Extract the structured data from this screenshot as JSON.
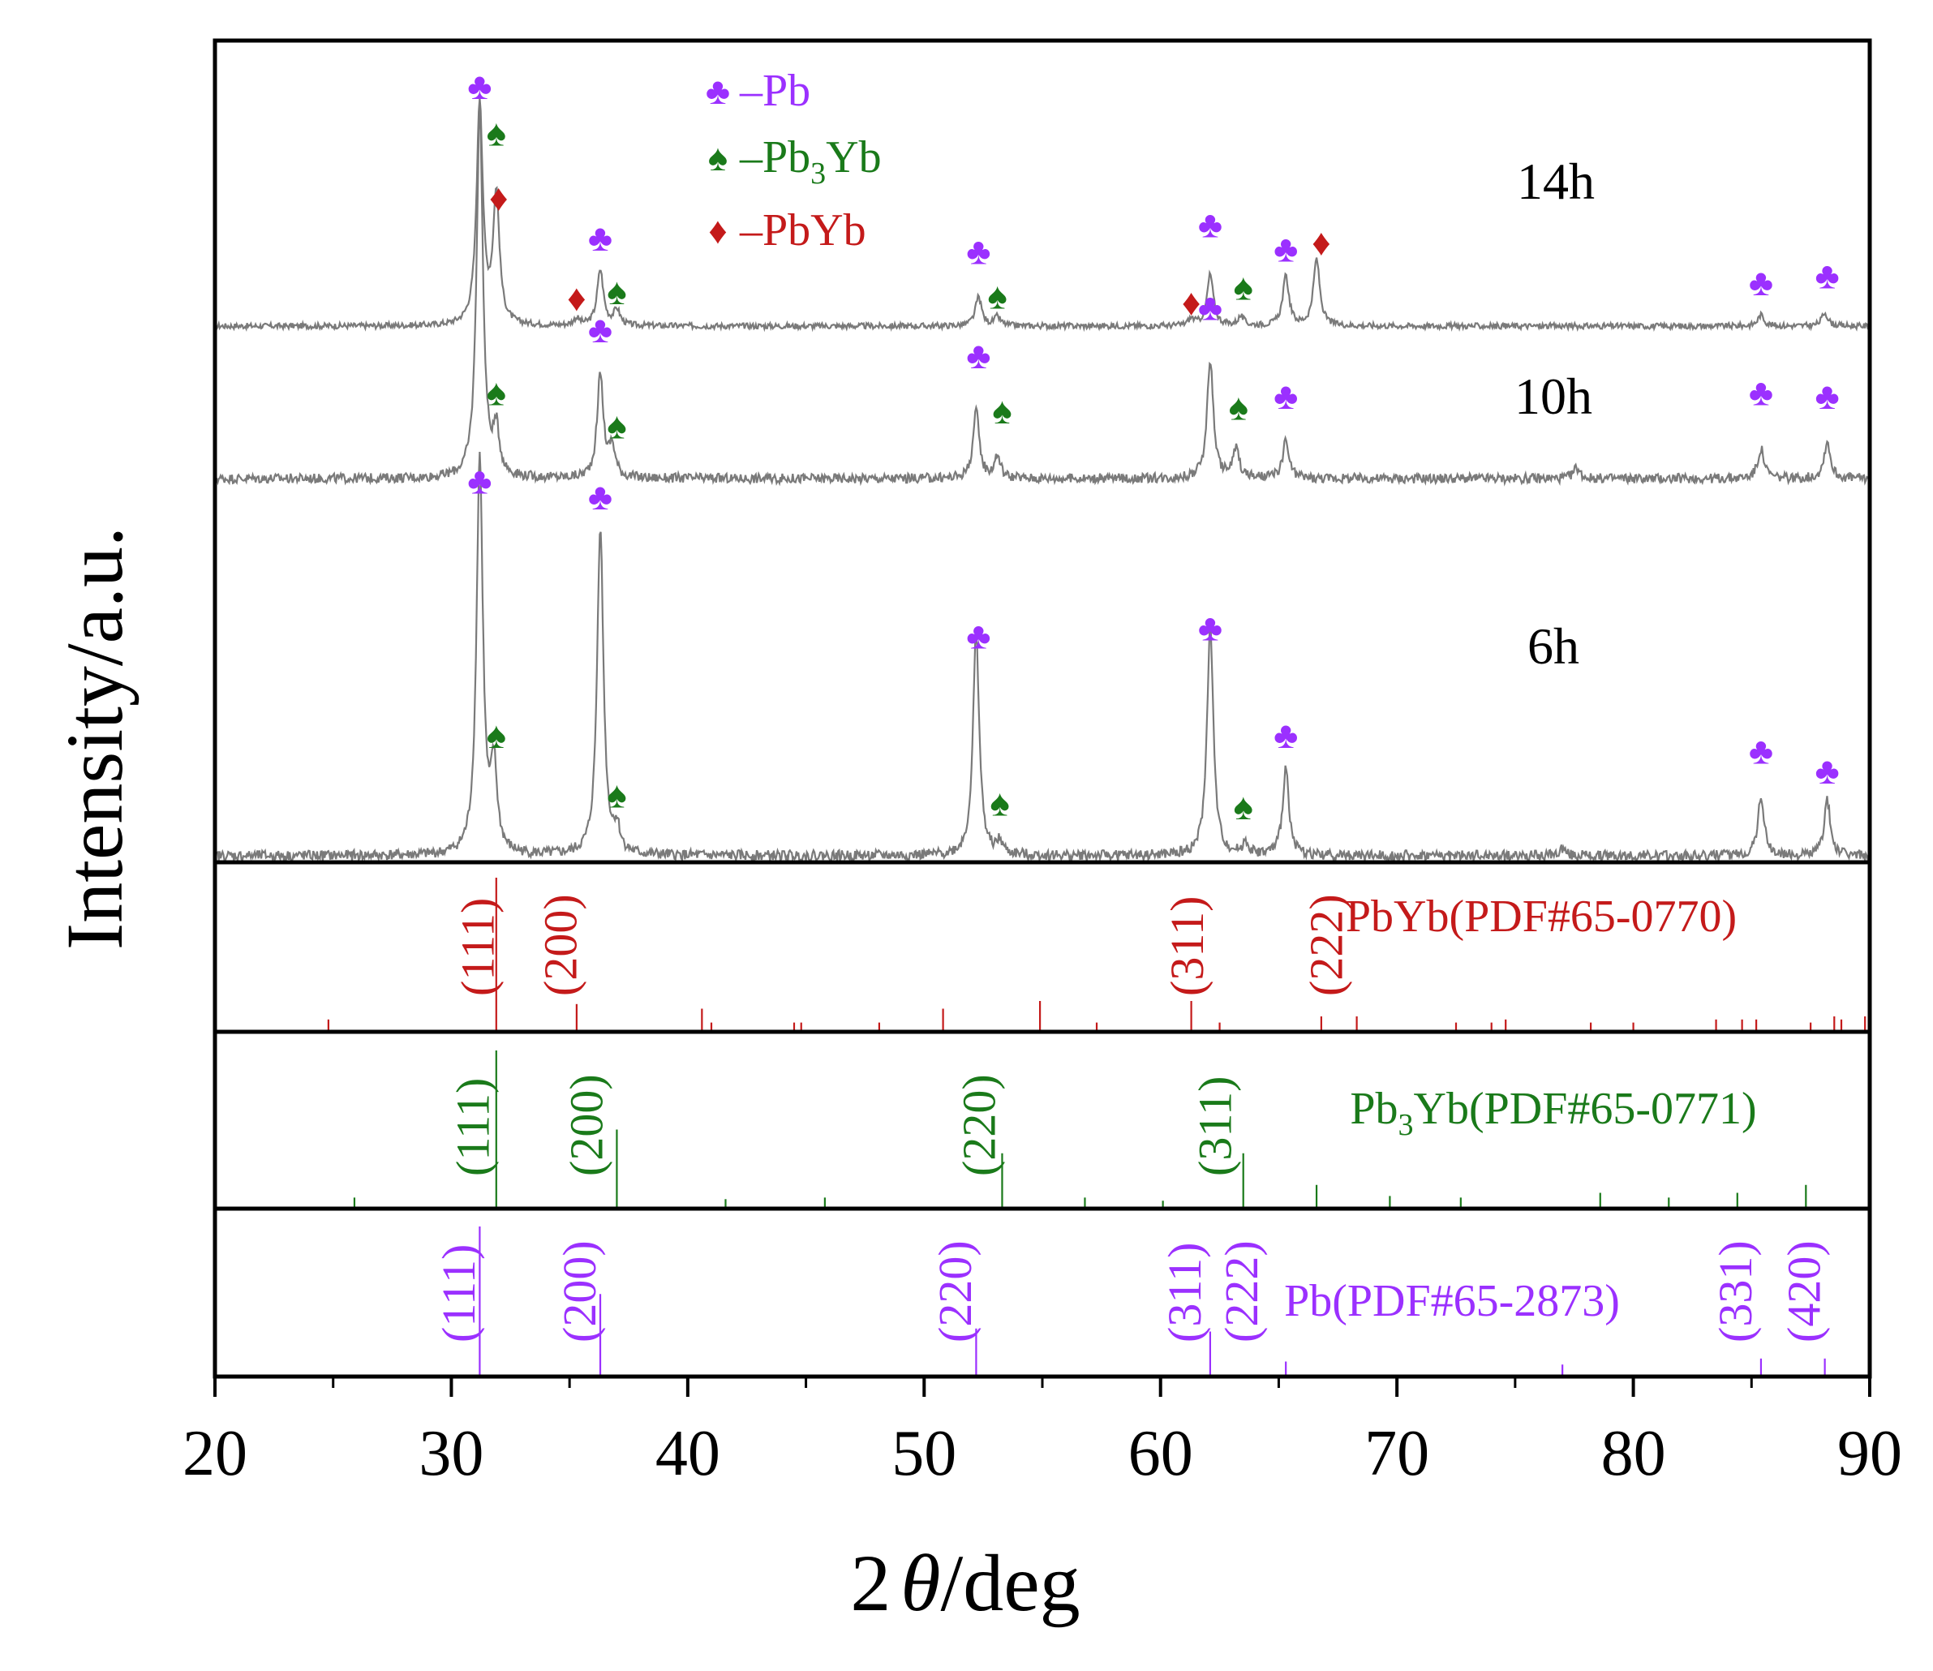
{
  "chart_data": {
    "type": "line",
    "xlabel_prefix": "2",
    "xlabel_theta": "θ",
    "xlabel_suffix": "/deg",
    "ylabel": "Intensity/a.u.",
    "xlim": [
      20,
      90
    ],
    "xticks": [
      "20",
      "30",
      "40",
      "50",
      "60",
      "70",
      "80",
      "90"
    ],
    "colors": {
      "Pb": "#9b30ff",
      "Pb3Yb": "#1a7a1a",
      "PbYb": "#c41a1a",
      "pattern": "#7a7a7a",
      "axis": "#000000"
    },
    "legend": [
      {
        "phase": "Pb",
        "symbol": "♣",
        "prefix": "–Pb",
        "sub": "",
        "suffix": ""
      },
      {
        "phase": "Pb3Yb",
        "symbol": "♠",
        "prefix": "–Pb",
        "sub": "3",
        "suffix": "Yb"
      },
      {
        "phase": "PbYb",
        "symbol": "♦",
        "prefix": "–PbYb",
        "sub": "",
        "suffix": ""
      }
    ],
    "patterns": [
      {
        "label": "14h",
        "baseline": 0,
        "peaks": [
          [
            31.2,
            100
          ],
          [
            31.9,
            58
          ],
          [
            36.3,
            25
          ],
          [
            37.0,
            7
          ],
          [
            52.3,
            13
          ],
          [
            53.1,
            4
          ],
          [
            62.1,
            23
          ],
          [
            63.4,
            4
          ],
          [
            65.3,
            22
          ],
          [
            66.6,
            30
          ],
          [
            85.4,
            5
          ],
          [
            88.1,
            6
          ],
          [
            35.3,
            3
          ],
          [
            61.3,
            3
          ]
        ],
        "markers": [
          {
            "phase": "Pb",
            "x": 31.2,
            "y": 107
          },
          {
            "phase": "Pb3Yb",
            "x": 31.9,
            "y": 86
          },
          {
            "phase": "PbYb",
            "x": 32.0,
            "y": 57
          },
          {
            "phase": "Pb",
            "x": 36.3,
            "y": 39
          },
          {
            "phase": "Pb3Yb",
            "x": 37.0,
            "y": 15
          },
          {
            "phase": "PbYb",
            "x": 35.3,
            "y": 12
          },
          {
            "phase": "Pb",
            "x": 52.3,
            "y": 33
          },
          {
            "phase": "Pb3Yb",
            "x": 53.1,
            "y": 13
          },
          {
            "phase": "Pb",
            "x": 62.1,
            "y": 45
          },
          {
            "phase": "PbYb",
            "x": 61.3,
            "y": 10
          },
          {
            "phase": "Pb3Yb",
            "x": 63.5,
            "y": 17
          },
          {
            "phase": "Pb",
            "x": 65.3,
            "y": 34
          },
          {
            "phase": "PbYb",
            "x": 66.8,
            "y": 37
          },
          {
            "phase": "Pb",
            "x": 85.4,
            "y": 19
          },
          {
            "phase": "Pb",
            "x": 88.2,
            "y": 22
          }
        ]
      },
      {
        "label": "10h",
        "baseline": 0,
        "peaks": [
          [
            31.2,
            100
          ],
          [
            31.9,
            12
          ],
          [
            36.3,
            28
          ],
          [
            36.8,
            8
          ],
          [
            52.2,
            18
          ],
          [
            53.1,
            6
          ],
          [
            62.1,
            32
          ],
          [
            63.2,
            8
          ],
          [
            65.3,
            10
          ],
          [
            77.6,
            3
          ],
          [
            85.4,
            8
          ],
          [
            88.2,
            10
          ]
        ],
        "markers": [
          {
            "phase": "Pb3Yb",
            "x": 31.9,
            "y": 23
          },
          {
            "phase": "Pb",
            "x": 36.3,
            "y": 40
          },
          {
            "phase": "Pb3Yb",
            "x": 37.0,
            "y": 14
          },
          {
            "phase": "Pb",
            "x": 52.3,
            "y": 33
          },
          {
            "phase": "Pb3Yb",
            "x": 53.3,
            "y": 18
          },
          {
            "phase": "Pb",
            "x": 62.1,
            "y": 46
          },
          {
            "phase": "Pb3Yb",
            "x": 63.3,
            "y": 19
          },
          {
            "phase": "Pb",
            "x": 65.3,
            "y": 22
          },
          {
            "phase": "Pb",
            "x": 85.4,
            "y": 23
          },
          {
            "phase": "Pb",
            "x": 88.2,
            "y": 22
          }
        ]
      },
      {
        "label": "6h",
        "baseline": 0,
        "peaks": [
          [
            31.2,
            100
          ],
          [
            31.8,
            21
          ],
          [
            36.3,
            83
          ],
          [
            37.0,
            6
          ],
          [
            52.2,
            56
          ],
          [
            53.2,
            3
          ],
          [
            62.1,
            58
          ],
          [
            63.6,
            3
          ],
          [
            65.3,
            22
          ],
          [
            77.0,
            2
          ],
          [
            85.4,
            15
          ],
          [
            88.2,
            14
          ]
        ],
        "markers": [
          {
            "phase": "Pb",
            "x": 31.2,
            "y": 94
          },
          {
            "phase": "Pb3Yb",
            "x": 31.9,
            "y": 30
          },
          {
            "phase": "Pb",
            "x": 36.3,
            "y": 90
          },
          {
            "phase": "Pb3Yb",
            "x": 37.0,
            "y": 15
          },
          {
            "phase": "Pb",
            "x": 52.3,
            "y": 55
          },
          {
            "phase": "Pb3Yb",
            "x": 53.2,
            "y": 13
          },
          {
            "phase": "Pb",
            "x": 62.1,
            "y": 57
          },
          {
            "phase": "Pb3Yb",
            "x": 63.5,
            "y": 12
          },
          {
            "phase": "Pb",
            "x": 65.3,
            "y": 30
          },
          {
            "phase": "Pb",
            "x": 85.4,
            "y": 26
          },
          {
            "phase": "Pb",
            "x": 88.2,
            "y": 21
          }
        ]
      }
    ],
    "references": [
      {
        "phase": "PbYb",
        "name_prefix": "PbYb",
        "name_sub": "",
        "name_suffix": "(PDF#65-0770)",
        "sticks": [
          [
            24.8,
            8
          ],
          [
            31.9,
            100
          ],
          [
            35.3,
            18
          ],
          [
            40.6,
            15
          ],
          [
            41.0,
            6
          ],
          [
            44.5,
            6
          ],
          [
            44.8,
            6
          ],
          [
            48.1,
            6
          ],
          [
            50.8,
            15
          ],
          [
            54.9,
            20
          ],
          [
            57.3,
            6
          ],
          [
            61.3,
            20
          ],
          [
            62.5,
            6
          ],
          [
            66.8,
            10
          ],
          [
            68.3,
            10
          ],
          [
            72.5,
            6
          ],
          [
            74.0,
            6
          ],
          [
            74.6,
            8
          ],
          [
            78.2,
            6
          ],
          [
            80.0,
            6
          ],
          [
            83.5,
            8
          ],
          [
            84.6,
            8
          ],
          [
            85.2,
            8
          ],
          [
            87.5,
            6
          ],
          [
            88.5,
            10
          ],
          [
            88.8,
            8
          ],
          [
            89.8,
            10
          ]
        ],
        "hkl": [
          {
            "label": "(111)",
            "x": 31.1
          },
          {
            "label": "(200)",
            "x": 34.6
          },
          {
            "label": "(311)",
            "x": 61.1
          },
          {
            "label": "(222)",
            "x": 67.0
          }
        ]
      },
      {
        "phase": "Pb3Yb",
        "name_prefix": "Pb",
        "name_sub": "3",
        "name_suffix": "Yb(PDF#65-0771)",
        "sticks": [
          [
            25.9,
            7
          ],
          [
            31.9,
            100
          ],
          [
            37.0,
            50
          ],
          [
            41.6,
            6
          ],
          [
            45.8,
            7
          ],
          [
            53.3,
            35
          ],
          [
            56.8,
            7
          ],
          [
            60.1,
            5
          ],
          [
            63.5,
            35
          ],
          [
            66.6,
            15
          ],
          [
            69.7,
            8
          ],
          [
            72.7,
            7
          ],
          [
            78.6,
            10
          ],
          [
            81.5,
            7
          ],
          [
            84.4,
            10
          ],
          [
            87.3,
            15
          ]
        ],
        "hkl": [
          {
            "label": "(111)",
            "x": 30.9
          },
          {
            "label": "(200)",
            "x": 35.7
          },
          {
            "label": "(220)",
            "x": 52.3
          },
          {
            "label": "(311)",
            "x": 62.3
          }
        ]
      },
      {
        "phase": "Pb",
        "name_prefix": "Pb",
        "name_sub": "",
        "name_suffix": "(PDF#65-2873)",
        "sticks": [
          [
            31.2,
            100
          ],
          [
            36.3,
            55
          ],
          [
            52.2,
            32
          ],
          [
            62.1,
            30
          ],
          [
            65.3,
            10
          ],
          [
            77.0,
            8
          ],
          [
            85.4,
            12
          ],
          [
            88.1,
            12
          ]
        ],
        "hkl": [
          {
            "label": "(111)",
            "x": 30.3
          },
          {
            "label": "(200)",
            "x": 35.4
          },
          {
            "label": "(220)",
            "x": 51.3
          },
          {
            "label": "(311)",
            "x": 61.0
          },
          {
            "label": "(222)",
            "x": 63.4
          },
          {
            "label": "(331)",
            "x": 84.3
          },
          {
            "label": "(420)",
            "x": 87.2
          }
        ]
      }
    ]
  }
}
